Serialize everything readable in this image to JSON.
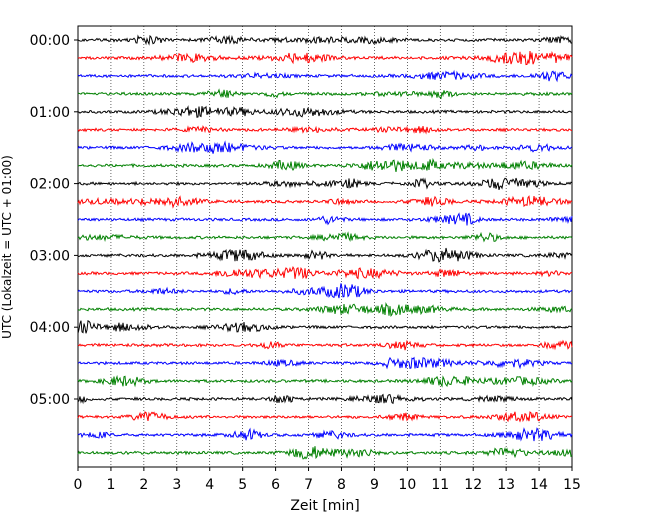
{
  "chart_data": {
    "type": "line",
    "title": "",
    "xlabel": "Zeit  [min]",
    "ylabel": "UTC (Lokalzeit = UTC + 01:00)",
    "xlim": [
      0,
      15
    ],
    "x_ticks": [
      "0",
      "1",
      "2",
      "3",
      "4",
      "5",
      "6",
      "7",
      "8",
      "9",
      "10",
      "11",
      "12",
      "13",
      "14",
      "15"
    ],
    "grid": "vertical-dotted",
    "legend": "none",
    "row_interval_min": 15,
    "y_ticks": [
      {
        "label": "00:00",
        "row": 0
      },
      {
        "label": "01:00",
        "row": 4
      },
      {
        "label": "02:00",
        "row": 8
      },
      {
        "label": "03:00",
        "row": 12
      },
      {
        "label": "04:00",
        "row": 16
      },
      {
        "label": "05:00",
        "row": 20
      }
    ],
    "row_colors": [
      "#000000",
      "#ff0000",
      "#0000ff",
      "#008000"
    ],
    "rows": [
      {
        "start": "00:00"
      },
      {
        "start": "00:15"
      },
      {
        "start": "00:30"
      },
      {
        "start": "00:45"
      },
      {
        "start": "01:00"
      },
      {
        "start": "01:15"
      },
      {
        "start": "01:30"
      },
      {
        "start": "01:45"
      },
      {
        "start": "02:00"
      },
      {
        "start": "02:15"
      },
      {
        "start": "02:30"
      },
      {
        "start": "02:45"
      },
      {
        "start": "03:00"
      },
      {
        "start": "03:15"
      },
      {
        "start": "03:30"
      },
      {
        "start": "03:45"
      },
      {
        "start": "04:00"
      },
      {
        "start": "04:15"
      },
      {
        "start": "04:30"
      },
      {
        "start": "04:45"
      },
      {
        "start": "05:00"
      },
      {
        "start": "05:15"
      },
      {
        "start": "05:30"
      },
      {
        "start": "05:45"
      }
    ]
  }
}
